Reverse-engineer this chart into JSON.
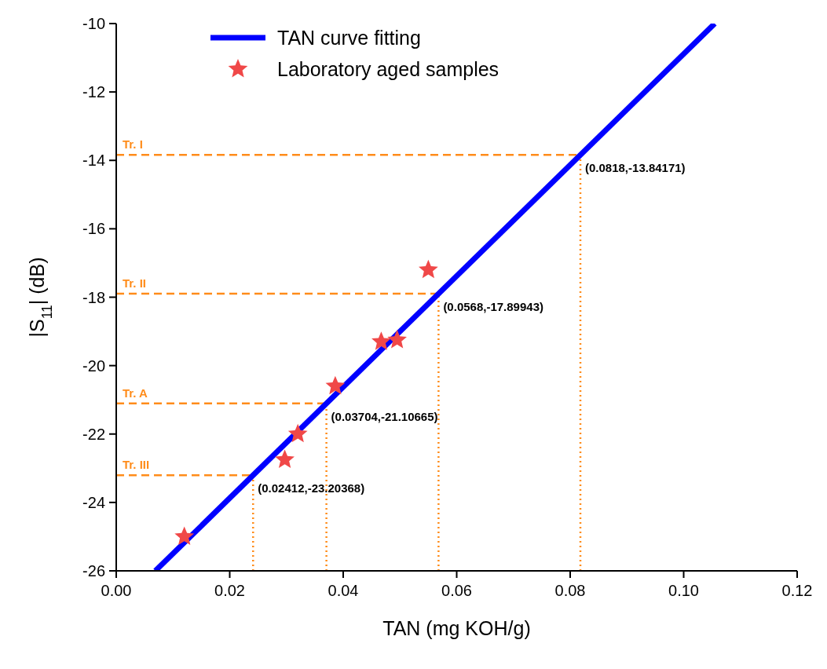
{
  "chart_data": {
    "type": "scatter",
    "xlabel": "TAN (mg KOH/g)",
    "ylabel": "|S$_{11}$| (dB)",
    "xlim": [
      0,
      0.12
    ],
    "xticks": [
      {
        "value": 0,
        "label": "0.00"
      },
      0.02,
      0.04,
      0.06,
      0.08,
      {
        "value": 0.1,
        "label": "0.10"
      },
      0.12
    ],
    "ylim": [
      -26,
      -10
    ],
    "yticks": [
      -26,
      -24,
      -22,
      -20,
      -18,
      -16,
      -14,
      -12,
      -10
    ],
    "legend": "top",
    "grid": false,
    "series": [
      {
        "name": "TAN curve fitting",
        "type": "line",
        "color": "#0000ff",
        "x": [
          0.00689,
          0.10547
        ],
        "values": [
          -26,
          -10
        ],
        "marker": "none"
      },
      {
        "name": "Laboratory aged samples",
        "color": "#f04848",
        "marker": "star",
        "x": [
          0.012,
          0.0297,
          0.032,
          0.0386,
          0.0467,
          0.0495,
          0.055
        ],
        "values": [
          -25.0,
          -22.75,
          -22.0,
          -20.6,
          -19.3,
          -19.25,
          -17.2
        ]
      }
    ],
    "ref_lines": [
      {
        "axis": "y",
        "value": -13.84171,
        "label": "Tr. I",
        "color": "#ff8c1a",
        "line_style": "dashed"
      },
      {
        "axis": "y",
        "value": -17.89943,
        "label": "Tr. II",
        "color": "#ff8c1a",
        "line_style": "dashed"
      },
      {
        "axis": "y",
        "value": -21.10665,
        "label": "Tr. A",
        "color": "#ff8c1a",
        "line_style": "dashed"
      },
      {
        "axis": "y",
        "value": -23.20368,
        "label": "Tr. III",
        "color": "#ff8c1a",
        "line_style": "dashed"
      },
      {
        "axis": "x",
        "value": 0.0818,
        "color": "#ff8c1a",
        "line_style": "dotted"
      },
      {
        "axis": "x",
        "value": 0.0568,
        "color": "#ff8c1a",
        "line_style": "dotted"
      },
      {
        "axis": "x",
        "value": 0.03704,
        "color": "#ff8c1a",
        "line_style": "dotted"
      },
      {
        "axis": "x",
        "value": 0.02412,
        "color": "#ff8c1a",
        "line_style": "dotted"
      }
    ],
    "annotations": [
      {
        "text": "(0.0818,-13.84171)",
        "x": 0.0818,
        "y": -13.84171
      },
      {
        "text": "(0.0568,-17.89943)",
        "x": 0.0568,
        "y": -17.89943
      },
      {
        "text": "(0.03704,-21.10665)",
        "x": 0.03704,
        "y": -21.10665
      },
      {
        "text": "(0.02412,-23.20368)",
        "x": 0.02412,
        "y": -23.20368
      }
    ]
  }
}
